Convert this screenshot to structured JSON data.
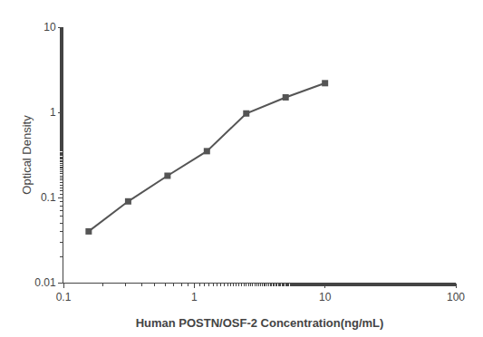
{
  "chart_data": {
    "type": "line",
    "x": [
      0.156,
      0.3125,
      0.625,
      1.25,
      2.5,
      5.0,
      10.0
    ],
    "values": [
      0.04,
      0.09,
      0.18,
      0.35,
      0.97,
      1.5,
      2.2
    ],
    "xlabel": "Human POSTN/OSF-2 Concentration(ng/mL)",
    "ylabel": "Optical Density",
    "xlim": [
      0.1,
      100
    ],
    "ylim": [
      0.01,
      10
    ],
    "xticks": [
      0.1,
      1,
      10,
      100
    ],
    "yticks": [
      0.01,
      0.1,
      1,
      10
    ],
    "log": true,
    "grid": false,
    "color": "#555555",
    "marker": "square"
  }
}
